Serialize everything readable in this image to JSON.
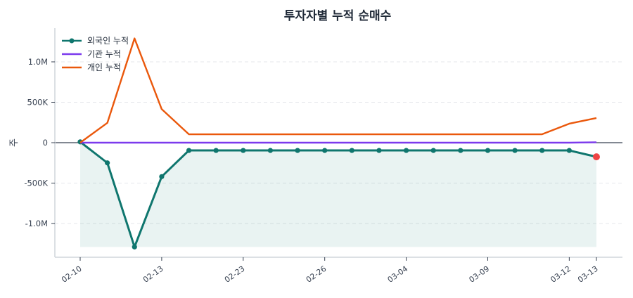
{
  "chart_data": {
    "type": "line",
    "title": "투자자별 누적 순매수",
    "xlabel": "",
    "ylabel": "주",
    "ylim": [
      -1400000,
      1420000
    ],
    "x": [
      "02-10",
      "02-11",
      "02-12",
      "02-13",
      "02-16",
      "02-19",
      "02-23",
      "02-24",
      "02-25",
      "02-26",
      "02-27",
      "03-03",
      "03-04",
      "03-05",
      "03-06",
      "03-09",
      "03-10",
      "03-11",
      "03-12",
      "03-13"
    ],
    "xtick_labels": [
      "02-10",
      "02-13",
      "02-23",
      "02-26",
      "03-04",
      "03-09",
      "03-12",
      "03-13"
    ],
    "xtick_indices": [
      0,
      3,
      6,
      9,
      12,
      15,
      18,
      19
    ],
    "yticks": [
      {
        "value": 1000000,
        "label": "1.0M"
      },
      {
        "value": 500000,
        "label": "500K"
      },
      {
        "value": 0,
        "label": "0"
      },
      {
        "value": -500000,
        "label": "-500K"
      },
      {
        "value": -1000000,
        "label": "-1.0M"
      }
    ],
    "grid": true,
    "legend_position": "upper left",
    "series": [
      {
        "name": "외국인 누적",
        "color": "#0f766e",
        "markers": true,
        "fill": true,
        "values": [
          10000,
          -250000,
          -1290000,
          -420000,
          -96000,
          -96000,
          -96000,
          -96000,
          -96000,
          -96000,
          -96000,
          -96000,
          -96000,
          -96000,
          -96000,
          -96000,
          -96000,
          -96000,
          -96000,
          -175000
        ]
      },
      {
        "name": "기관 누적",
        "color": "#7c3aed",
        "markers": false,
        "fill": false,
        "values": [
          0,
          0,
          0,
          0,
          0,
          0,
          0,
          0,
          0,
          0,
          0,
          0,
          0,
          0,
          0,
          0,
          0,
          0,
          0,
          5000
        ]
      },
      {
        "name": "개인 누적",
        "color": "#ea580c",
        "markers": false,
        "fill": false,
        "values": [
          0,
          245000,
          1290000,
          415000,
          104000,
          104000,
          104000,
          104000,
          104000,
          104000,
          104000,
          104000,
          104000,
          104000,
          104000,
          104000,
          104000,
          104000,
          235000,
          305000
        ]
      }
    ],
    "last_point_highlight_color": "#ef4444"
  }
}
